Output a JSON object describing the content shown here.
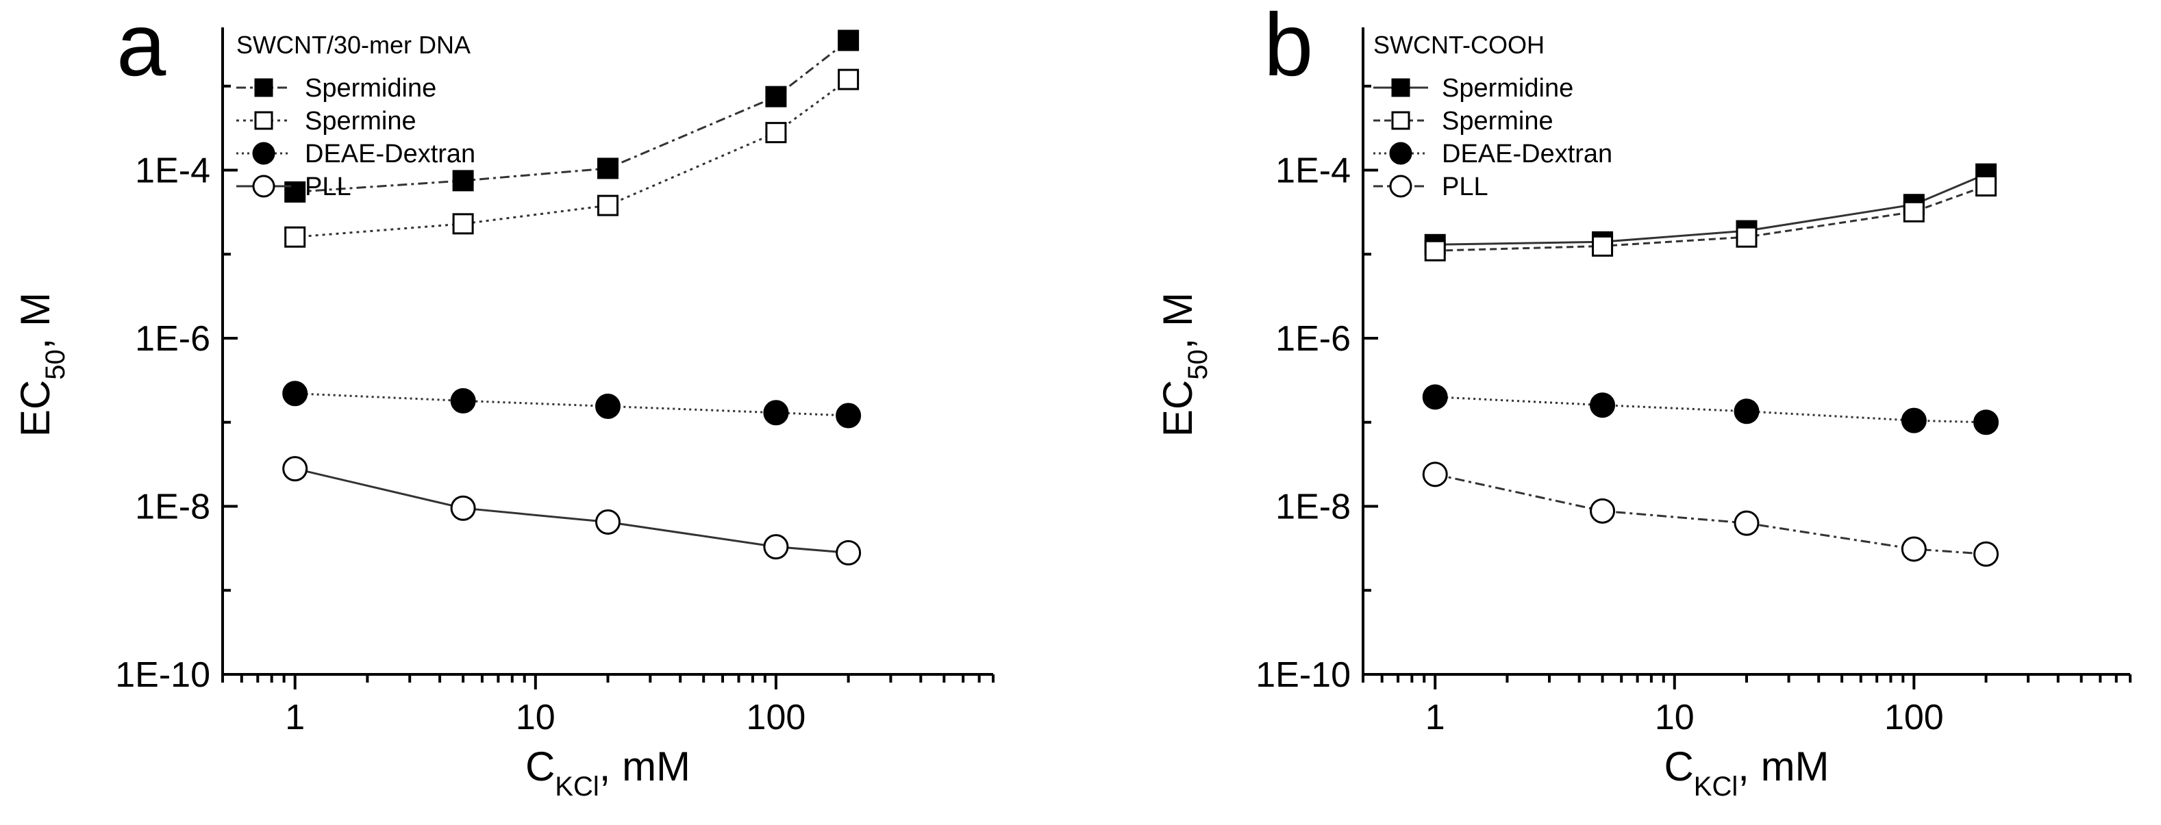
{
  "chart_data": [
    {
      "type": "line",
      "panel_label": "a",
      "title": "SWCNT/30-mer DNA",
      "xlabel": {
        "main": "C",
        "sub": "KCl",
        "unit": ", mM"
      },
      "ylabel": {
        "main": "EC",
        "sub": "50",
        "unit": ", M"
      },
      "xscale": "log",
      "yscale": "log",
      "xlim": [
        0.5,
        800
      ],
      "ylim": [
        1e-10,
        0.005
      ],
      "x_ticks": [
        1,
        10,
        100
      ],
      "x_tick_labels": [
        "1",
        "10",
        "100"
      ],
      "y_ticks": [
        1e-10,
        1e-08,
        1e-06,
        0.0001
      ],
      "y_tick_labels": [
        "1E-10",
        "1E-8",
        "1E-6",
        "1E-4"
      ],
      "legend_position": "top-left",
      "x": [
        1,
        5,
        20,
        100,
        200
      ],
      "series": [
        {
          "name": "Spermidine",
          "values": [
            5.5e-05,
            7.5e-05,
            0.000105,
            0.00075,
            0.0035
          ],
          "marker": "square",
          "filled": true,
          "dash": "14,6,4,6"
        },
        {
          "name": "Spermine",
          "values": [
            1.6e-05,
            2.3e-05,
            3.8e-05,
            0.00028,
            0.0012
          ],
          "marker": "square",
          "filled": false,
          "dash": "4,6"
        },
        {
          "name": "DEAE-Dextran",
          "values": [
            2.2e-07,
            1.8e-07,
            1.55e-07,
            1.3e-07,
            1.2e-07
          ],
          "marker": "circle",
          "filled": true,
          "dash": "3,5"
        },
        {
          "name": "PLL",
          "values": [
            2.8e-08,
            9.5e-09,
            6.5e-09,
            3.3e-09,
            2.8e-09
          ],
          "marker": "circle",
          "filled": false,
          "dash": ""
        }
      ]
    },
    {
      "type": "line",
      "panel_label": "b",
      "title": "SWCNT-COOH",
      "xlabel": {
        "main": "C",
        "sub": "KCl",
        "unit": ", mM"
      },
      "ylabel": {
        "main": "EC",
        "sub": "50",
        "unit": ", M"
      },
      "xscale": "log",
      "yscale": "log",
      "xlim": [
        0.5,
        800
      ],
      "ylim": [
        1e-10,
        0.005
      ],
      "x_ticks": [
        1,
        10,
        100
      ],
      "x_tick_labels": [
        "1",
        "10",
        "100"
      ],
      "y_ticks": [
        1e-10,
        1e-08,
        1e-06,
        0.0001
      ],
      "y_tick_labels": [
        "1E-10",
        "1E-8",
        "1E-6",
        "1E-4"
      ],
      "legend_position": "top-left",
      "x": [
        1,
        5,
        20,
        100,
        200
      ],
      "series": [
        {
          "name": "Spermidine",
          "values": [
            1.3e-05,
            1.4e-05,
            1.9e-05,
            3.9e-05,
            9e-05
          ],
          "marker": "square",
          "filled": true,
          "dash": ""
        },
        {
          "name": "Spermine",
          "values": [
            1.1e-05,
            1.25e-05,
            1.6e-05,
            3.2e-05,
            6.5e-05
          ],
          "marker": "square",
          "filled": false,
          "dash": "10,6"
        },
        {
          "name": "DEAE-Dextran",
          "values": [
            2e-07,
            1.6e-07,
            1.35e-07,
            1.05e-07,
            1e-07
          ],
          "marker": "circle",
          "filled": true,
          "dash": "3,5"
        },
        {
          "name": "PLL",
          "values": [
            2.4e-08,
            8.8e-09,
            6.3e-09,
            3.1e-09,
            2.7e-09
          ],
          "marker": "circle",
          "filled": false,
          "dash": "14,6,4,6"
        }
      ]
    }
  ]
}
